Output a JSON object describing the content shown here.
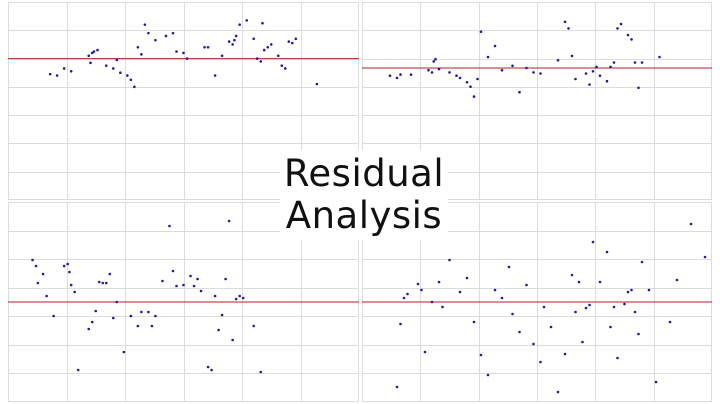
{
  "title": {
    "line1": "Residual",
    "line2": "Analysis"
  },
  "colors": {
    "grid": "#dcdcdc",
    "zero_line": "#b22222",
    "point": "#1a1aa6",
    "background": "#ffffff"
  },
  "chart_data": [
    {
      "type": "scatter",
      "panel": "top-left",
      "grid": true,
      "xlim": [
        0,
        100
      ],
      "ylim": [
        -1.0,
        0.4
      ],
      "zero_line": 0,
      "x": [
        12,
        14,
        16,
        18,
        23,
        23.5,
        24,
        24.5,
        25.5,
        28,
        30,
        31,
        32,
        34,
        35,
        36,
        37,
        38,
        39,
        40,
        42,
        45,
        47,
        48,
        50,
        51,
        56,
        57,
        59,
        61,
        63,
        64,
        64.5,
        65,
        66,
        68,
        70,
        71,
        72,
        72.5,
        73,
        74,
        75,
        77,
        78,
        79,
        80,
        81,
        82,
        88
      ],
      "y": [
        -0.11,
        -0.12,
        -0.07,
        -0.09,
        0.02,
        -0.03,
        0.04,
        0.05,
        0.06,
        -0.05,
        -0.07,
        -0.01,
        -0.1,
        -0.12,
        -0.15,
        -0.2,
        0.08,
        0.03,
        0.24,
        0.18,
        0.13,
        0.16,
        0.18,
        0.05,
        0.04,
        0.0,
        0.08,
        0.08,
        -0.12,
        0.02,
        0.12,
        0.1,
        0.13,
        0.16,
        0.24,
        0.27,
        0.14,
        0.0,
        -0.02,
        0.25,
        0.06,
        0.08,
        0.1,
        0.02,
        -0.05,
        -0.07,
        0.12,
        0.11,
        0.14,
        -0.18
      ]
    },
    {
      "type": "scatter",
      "panel": "top-right",
      "grid": true,
      "xlim": [
        0,
        100
      ],
      "ylim": [
        -1.2,
        0.6
      ],
      "zero_line": 0,
      "x": [
        8,
        10,
        11,
        14,
        19,
        20,
        20.5,
        21,
        22,
        25,
        27,
        28,
        30,
        31,
        32,
        33,
        34,
        36,
        38,
        40,
        43,
        45,
        47,
        49,
        51,
        56,
        58,
        59,
        60,
        61,
        64,
        65,
        66,
        67,
        68,
        70,
        71,
        72,
        73,
        74,
        76,
        77,
        78,
        79,
        80,
        85
      ],
      "y": [
        -0.07,
        -0.09,
        -0.06,
        -0.06,
        -0.02,
        -0.04,
        0.06,
        0.08,
        -0.01,
        -0.04,
        -0.07,
        -0.09,
        -0.13,
        -0.17,
        -0.26,
        -0.1,
        0.33,
        0.1,
        0.2,
        -0.02,
        0.02,
        -0.22,
        0.0,
        -0.04,
        -0.05,
        0.07,
        0.42,
        0.36,
        0.11,
        -0.1,
        -0.05,
        -0.15,
        -0.03,
        0.01,
        -0.07,
        -0.12,
        0.01,
        0.05,
        0.36,
        0.4,
        0.3,
        0.26,
        0.05,
        -0.18,
        0.05,
        0.1
      ]
    },
    {
      "type": "scatter",
      "panel": "bottom-left",
      "grid": true,
      "xlim": [
        0,
        100
      ],
      "ylim": [
        -1.0,
        1.0
      ],
      "zero_line": 0,
      "x": [
        7,
        8,
        8.5,
        10,
        11,
        13,
        16,
        17,
        17.5,
        18,
        19,
        20,
        23,
        24,
        25,
        26,
        27,
        28,
        29,
        30,
        31,
        33,
        35,
        37,
        38,
        40,
        41,
        42,
        44,
        46,
        47,
        48,
        50,
        52,
        53,
        54,
        55,
        57,
        58,
        59,
        60,
        61,
        62,
        63,
        64,
        65,
        66,
        67,
        70,
        72
      ],
      "y": [
        0.42,
        0.36,
        0.19,
        0.28,
        0.06,
        -0.14,
        0.36,
        0.38,
        0.3,
        0.17,
        0.1,
        -0.68,
        -0.27,
        -0.2,
        -0.09,
        0.2,
        0.19,
        0.19,
        0.28,
        -0.16,
        0.0,
        -0.5,
        -0.14,
        -0.24,
        -0.1,
        -0.1,
        -0.24,
        -0.14,
        0.21,
        0.76,
        0.31,
        0.16,
        0.17,
        0.26,
        0.16,
        0.23,
        0.11,
        -0.65,
        -0.68,
        0.06,
        -0.28,
        -0.13,
        0.23,
        0.81,
        -0.38,
        0.03,
        0.06,
        0.04,
        -0.24,
        -0.7
      ]
    },
    {
      "type": "scatter",
      "panel": "bottom-right",
      "grid": true,
      "xlim": [
        0,
        100
      ],
      "ylim": [
        -1.0,
        1.0
      ],
      "zero_line": 0,
      "x": [
        10,
        11,
        12,
        13,
        16,
        17,
        18,
        20,
        22,
        23,
        25,
        28,
        30,
        32,
        34,
        36,
        38,
        40,
        42,
        43,
        45,
        47,
        49,
        51,
        52,
        54,
        56,
        58,
        60,
        61,
        62,
        63,
        64,
        65,
        66,
        68,
        70,
        71,
        72,
        73,
        75,
        76,
        77,
        78,
        79,
        80,
        82,
        84,
        88,
        90,
        94,
        98
      ],
      "y": [
        -0.85,
        -0.22,
        0.04,
        0.08,
        0.18,
        0.12,
        -0.5,
        0.0,
        0.2,
        -0.05,
        0.42,
        0.1,
        0.24,
        -0.2,
        -0.53,
        -0.73,
        0.12,
        0.04,
        0.35,
        -0.12,
        -0.3,
        0.17,
        -0.42,
        -0.6,
        -0.05,
        -0.25,
        -0.9,
        -0.52,
        0.27,
        -0.1,
        0.2,
        -0.4,
        -0.06,
        -0.03,
        0.6,
        0.2,
        0.5,
        -0.25,
        -0.05,
        -0.56,
        -0.02,
        0.1,
        0.12,
        -0.1,
        -0.32,
        0.4,
        0.12,
        -0.8,
        -0.2,
        0.22,
        0.78,
        0.45
      ]
    }
  ]
}
